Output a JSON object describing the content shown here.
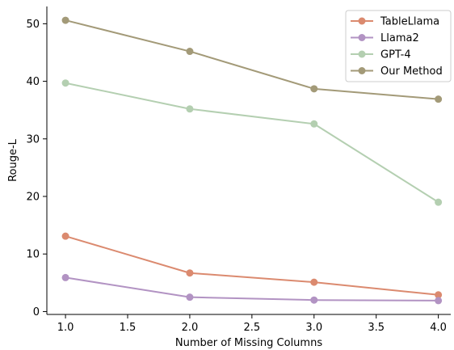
{
  "chart_data": {
    "type": "line",
    "title": "",
    "xlabel": "Number of Missing Columns",
    "ylabel": "Rouge-L",
    "x": [
      1.0,
      2.0,
      3.0,
      4.0
    ],
    "xlim": [
      0.85,
      4.1
    ],
    "ylim": [
      -0.5,
      53
    ],
    "x_ticks": [
      1.0,
      1.5,
      2.0,
      2.5,
      3.0,
      3.5,
      4.0
    ],
    "x_tick_labels": [
      "1.0",
      "1.5",
      "2.0",
      "2.5",
      "3.0",
      "3.5",
      "4.0"
    ],
    "y_ticks": [
      0,
      10,
      20,
      30,
      40,
      50
    ],
    "y_tick_labels": [
      "0",
      "10",
      "20",
      "30",
      "40",
      "50"
    ],
    "grid": false,
    "legend_position": "top-right",
    "series": [
      {
        "name": "TableLlama",
        "color": "#db8a6f",
        "values": [
          13.1,
          6.7,
          5.1,
          2.9
        ]
      },
      {
        "name": "Llama2",
        "color": "#b293c3",
        "values": [
          5.9,
          2.5,
          2.0,
          1.9
        ]
      },
      {
        "name": "GPT-4",
        "color": "#b4cfb1",
        "values": [
          39.7,
          35.2,
          32.6,
          19.0
        ]
      },
      {
        "name": "Our Method",
        "color": "#a39a78",
        "values": [
          50.6,
          45.2,
          38.7,
          36.9
        ]
      }
    ]
  }
}
